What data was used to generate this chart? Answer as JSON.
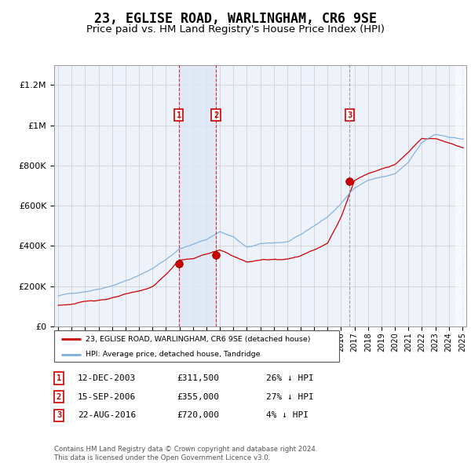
{
  "title": "23, EGLISE ROAD, WARLINGHAM, CR6 9SE",
  "subtitle": "Price paid vs. HM Land Registry's House Price Index (HPI)",
  "title_fontsize": 12,
  "subtitle_fontsize": 9.5,
  "ylim": [
    0,
    1300000
  ],
  "yticks": [
    0,
    200000,
    400000,
    600000,
    800000,
    1000000,
    1200000
  ],
  "ytick_labels": [
    "£0",
    "£200K",
    "£400K",
    "£600K",
    "£800K",
    "£1M",
    "£1.2M"
  ],
  "plot_bg_color": "#eef2fb",
  "grid_color": "#cccccc",
  "hpi_line_color": "#7aadde",
  "price_line_color": "#cc0000",
  "shade_color": "#dde8f5",
  "sale_years": [
    2003.95,
    2006.71,
    2016.64
  ],
  "sale_prices": [
    311500,
    355000,
    720000
  ],
  "sale_labels": [
    "1",
    "2",
    "3"
  ],
  "sale_dates": [
    "12-DEC-2003",
    "15-SEP-2006",
    "22-AUG-2016"
  ],
  "sale_pct": [
    "26% ↓ HPI",
    "27% ↓ HPI",
    "4% ↓ HPI"
  ],
  "legend_label_red": "23, EGLISE ROAD, WARLINGHAM, CR6 9SE (detached house)",
  "legend_label_blue": "HPI: Average price, detached house, Tandridge",
  "footer": "Contains HM Land Registry data © Crown copyright and database right 2024.\nThis data is licensed under the Open Government Licence v3.0.",
  "xmin": 1994.7,
  "xmax": 2025.3
}
